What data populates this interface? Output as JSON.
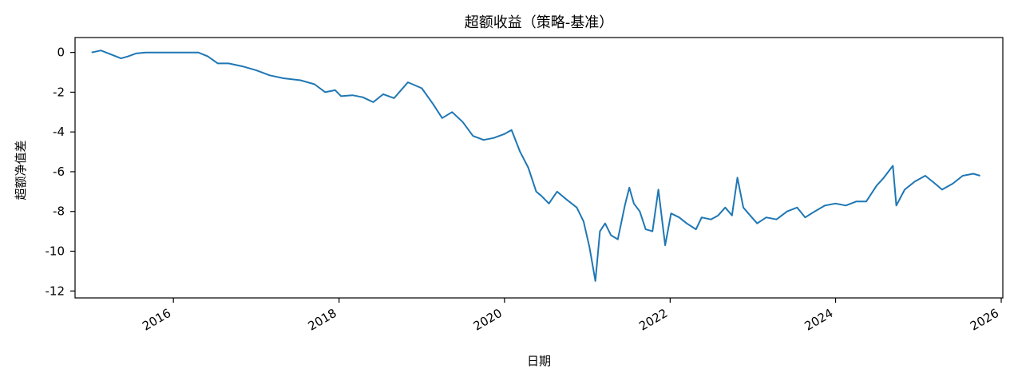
{
  "chart_data": {
    "type": "line",
    "title": "超额收益（策略-基准）",
    "xlabel": "日期",
    "ylabel": "超额净值差",
    "x_ticks": [
      "2016",
      "2018",
      "2020",
      "2022",
      "2024",
      "2026"
    ],
    "y_ticks": [
      0,
      -2,
      -4,
      -6,
      -8,
      -10,
      -12
    ],
    "xlim": [
      "2014-10-24",
      "2026-01-08"
    ],
    "ylim": [
      -12.35,
      0.75
    ],
    "grid": false,
    "colors": {
      "series": "#1f77b4"
    },
    "series": [
      {
        "x": [
          "2015-01-05",
          "2015-02-15",
          "2015-04-01",
          "2015-05-15",
          "2015-06-15",
          "2015-07-20",
          "2015-09-01",
          "2015-10-20",
          "2015-12-15",
          "2016-02-15",
          "2016-04-20",
          "2016-06-01",
          "2016-07-15",
          "2016-09-01",
          "2016-11-01",
          "2017-01-01",
          "2017-03-01",
          "2017-05-01",
          "2017-07-15",
          "2017-09-15",
          "2017-11-01",
          "2017-12-15",
          "2018-01-10",
          "2018-03-01",
          "2018-04-15",
          "2018-06-01",
          "2018-07-15",
          "2018-09-01",
          "2018-11-01",
          "2019-01-01",
          "2019-02-20",
          "2019-04-01",
          "2019-05-15",
          "2019-07-01",
          "2019-08-15",
          "2019-10-01",
          "2019-11-15",
          "2020-01-01",
          "2020-02-01",
          "2020-03-10",
          "2020-04-15",
          "2020-05-20",
          "2020-06-10",
          "2020-07-15",
          "2020-08-20",
          "2020-10-01",
          "2020-11-15",
          "2020-12-15",
          "2021-01-10",
          "2021-02-05",
          "2021-02-25",
          "2021-03-20",
          "2021-04-15",
          "2021-05-15",
          "2021-06-15",
          "2021-07-05",
          "2021-07-25",
          "2021-08-20",
          "2021-09-15",
          "2021-10-15",
          "2021-11-10",
          "2021-12-10",
          "2022-01-05",
          "2022-02-10",
          "2022-03-15",
          "2022-04-25",
          "2022-05-20",
          "2022-06-30",
          "2022-08-01",
          "2022-09-01",
          "2022-10-01",
          "2022-10-25",
          "2022-11-20",
          "2022-12-20",
          "2023-01-20",
          "2023-03-01",
          "2023-04-15",
          "2023-06-01",
          "2023-07-15",
          "2023-08-20",
          "2023-10-01",
          "2023-11-15",
          "2024-01-01",
          "2024-02-15",
          "2024-04-01",
          "2024-05-15",
          "2024-06-30",
          "2024-08-01",
          "2024-09-10",
          "2024-09-25",
          "2024-11-01",
          "2024-12-15",
          "2025-01-31",
          "2025-03-15",
          "2025-04-15",
          "2025-06-01",
          "2025-07-15",
          "2025-08-31",
          "2025-09-30"
        ],
        "y": [
          0.0,
          0.1,
          -0.1,
          -0.3,
          -0.2,
          -0.05,
          0.0,
          0.0,
          0.0,
          0.0,
          0.0,
          -0.2,
          -0.55,
          -0.55,
          -0.7,
          -0.9,
          -1.15,
          -1.3,
          -1.4,
          -1.6,
          -2.0,
          -1.9,
          -2.2,
          -2.15,
          -2.25,
          -2.5,
          -2.1,
          -2.3,
          -1.5,
          -1.8,
          -2.6,
          -3.3,
          -3.0,
          -3.5,
          -4.2,
          -4.4,
          -4.3,
          -4.1,
          -3.9,
          -5.0,
          -5.8,
          -7.0,
          -7.2,
          -7.6,
          -7.0,
          -7.4,
          -7.8,
          -8.5,
          -9.8,
          -11.5,
          -9.0,
          -8.6,
          -9.2,
          -9.4,
          -7.7,
          -6.8,
          -7.6,
          -8.0,
          -8.9,
          -9.0,
          -6.9,
          -9.7,
          -8.1,
          -8.3,
          -8.6,
          -8.9,
          -8.3,
          -8.4,
          -8.2,
          -7.8,
          -8.2,
          -6.3,
          -7.8,
          -8.2,
          -8.6,
          -8.3,
          -8.4,
          -8.0,
          -7.8,
          -8.3,
          -8.0,
          -7.7,
          -7.6,
          -7.7,
          -7.5,
          -7.5,
          -6.7,
          -6.3,
          -5.7,
          -7.7,
          -6.9,
          -6.5,
          -6.2,
          -6.6,
          -6.9,
          -6.6,
          -6.2,
          -6.1,
          -6.2
        ]
      }
    ]
  }
}
